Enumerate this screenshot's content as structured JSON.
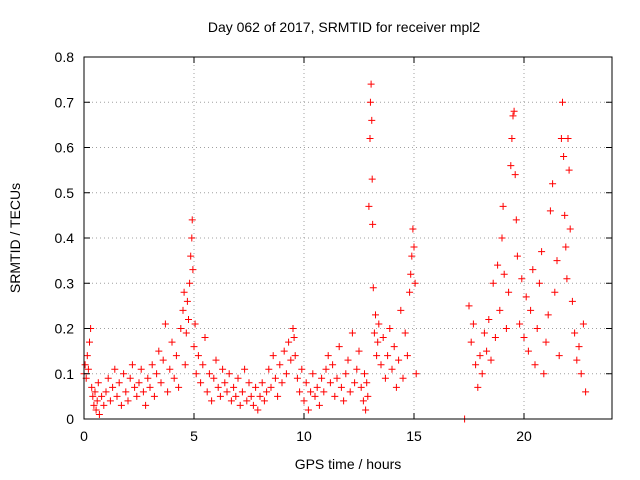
{
  "chart_data": {
    "type": "scatter",
    "title": "Day 062 of 2017, SRMTID for receiver mpl2",
    "xlabel": "GPS time / hours",
    "ylabel": "SRMTID / TECUs",
    "xlim": [
      0,
      24
    ],
    "ylim": [
      0,
      0.8
    ],
    "xticks": [
      0,
      5,
      10,
      15,
      20
    ],
    "xtick_labels": [
      "0",
      "5",
      "10",
      "15",
      "20"
    ],
    "yticks": [
      0,
      0.1,
      0.2,
      0.3,
      0.4,
      0.5,
      0.6,
      0.7,
      0.8
    ],
    "ytick_labels": [
      "0",
      "0.1",
      "0.2",
      "0.3",
      "0.4",
      "0.5",
      "0.6",
      "0.7",
      "0.8"
    ],
    "grid": true,
    "marker": "+",
    "color": "#ff0000",
    "series": [
      {
        "name": "SRMTID",
        "points": [
          [
            0.0,
            0.1
          ],
          [
            0.05,
            0.12
          ],
          [
            0.1,
            0.09
          ],
          [
            0.15,
            0.14
          ],
          [
            0.2,
            0.11
          ],
          [
            0.25,
            0.17
          ],
          [
            0.3,
            0.2
          ],
          [
            0.35,
            0.07
          ],
          [
            0.4,
            0.05
          ],
          [
            0.45,
            0.03
          ],
          [
            0.5,
            0.06
          ],
          [
            0.55,
            0.02
          ],
          [
            0.6,
            0.04
          ],
          [
            0.65,
            0.08
          ],
          [
            0.7,
            0.01
          ],
          [
            0.8,
            0.05
          ],
          [
            0.9,
            0.03
          ],
          [
            1.0,
            0.06
          ],
          [
            1.1,
            0.09
          ],
          [
            1.2,
            0.04
          ],
          [
            1.3,
            0.07
          ],
          [
            1.4,
            0.11
          ],
          [
            1.5,
            0.05
          ],
          [
            1.6,
            0.08
          ],
          [
            1.7,
            0.03
          ],
          [
            1.8,
            0.1
          ],
          [
            1.9,
            0.06
          ],
          [
            2.0,
            0.04
          ],
          [
            2.1,
            0.09
          ],
          [
            2.2,
            0.12
          ],
          [
            2.3,
            0.07
          ],
          [
            2.4,
            0.05
          ],
          [
            2.5,
            0.08
          ],
          [
            2.6,
            0.11
          ],
          [
            2.7,
            0.06
          ],
          [
            2.8,
            0.03
          ],
          [
            2.9,
            0.09
          ],
          [
            3.0,
            0.07
          ],
          [
            3.1,
            0.12
          ],
          [
            3.2,
            0.05
          ],
          [
            3.3,
            0.1
          ],
          [
            3.4,
            0.15
          ],
          [
            3.5,
            0.08
          ],
          [
            3.6,
            0.13
          ],
          [
            3.7,
            0.21
          ],
          [
            3.8,
            0.06
          ],
          [
            3.9,
            0.11
          ],
          [
            4.0,
            0.17
          ],
          [
            4.1,
            0.09
          ],
          [
            4.2,
            0.14
          ],
          [
            4.3,
            0.07
          ],
          [
            4.4,
            0.2
          ],
          [
            4.5,
            0.24
          ],
          [
            4.55,
            0.28
          ],
          [
            4.6,
            0.12
          ],
          [
            4.65,
            0.19
          ],
          [
            4.7,
            0.26
          ],
          [
            4.75,
            0.22
          ],
          [
            4.8,
            0.3
          ],
          [
            4.85,
            0.36
          ],
          [
            4.9,
            0.4
          ],
          [
            4.92,
            0.44
          ],
          [
            4.95,
            0.33
          ],
          [
            5.0,
            0.16
          ],
          [
            5.05,
            0.21
          ],
          [
            5.1,
            0.1
          ],
          [
            5.2,
            0.14
          ],
          [
            5.3,
            0.08
          ],
          [
            5.4,
            0.12
          ],
          [
            5.5,
            0.18
          ],
          [
            5.6,
            0.06
          ],
          [
            5.7,
            0.1
          ],
          [
            5.8,
            0.04
          ],
          [
            5.9,
            0.09
          ],
          [
            6.0,
            0.13
          ],
          [
            6.1,
            0.07
          ],
          [
            6.2,
            0.05
          ],
          [
            6.3,
            0.11
          ],
          [
            6.4,
            0.08
          ],
          [
            6.5,
            0.06
          ],
          [
            6.6,
            0.1
          ],
          [
            6.7,
            0.04
          ],
          [
            6.8,
            0.07
          ],
          [
            6.9,
            0.05
          ],
          [
            7.0,
            0.09
          ],
          [
            7.1,
            0.03
          ],
          [
            7.2,
            0.06
          ],
          [
            7.3,
            0.11
          ],
          [
            7.4,
            0.04
          ],
          [
            7.5,
            0.08
          ],
          [
            7.6,
            0.05
          ],
          [
            7.7,
            0.03
          ],
          [
            7.8,
            0.07
          ],
          [
            7.9,
            0.02
          ],
          [
            8.0,
            0.05
          ],
          [
            8.1,
            0.08
          ],
          [
            8.2,
            0.04
          ],
          [
            8.3,
            0.06
          ],
          [
            8.4,
            0.11
          ],
          [
            8.5,
            0.07
          ],
          [
            8.6,
            0.14
          ],
          [
            8.7,
            0.09
          ],
          [
            8.8,
            0.05
          ],
          [
            8.9,
            0.12
          ],
          [
            9.0,
            0.08
          ],
          [
            9.1,
            0.15
          ],
          [
            9.2,
            0.1
          ],
          [
            9.3,
            0.17
          ],
          [
            9.4,
            0.13
          ],
          [
            9.5,
            0.2
          ],
          [
            9.55,
            0.18
          ],
          [
            9.6,
            0.14
          ],
          [
            9.7,
            0.09
          ],
          [
            9.8,
            0.06
          ],
          [
            9.9,
            0.11
          ],
          [
            10.0,
            0.04
          ],
          [
            10.1,
            0.08
          ],
          [
            10.2,
            0.02
          ],
          [
            10.3,
            0.06
          ],
          [
            10.4,
            0.1
          ],
          [
            10.5,
            0.05
          ],
          [
            10.6,
            0.07
          ],
          [
            10.7,
            0.03
          ],
          [
            10.8,
            0.09
          ],
          [
            10.9,
            0.06
          ],
          [
            11.0,
            0.11
          ],
          [
            11.1,
            0.14
          ],
          [
            11.2,
            0.08
          ],
          [
            11.3,
            0.12
          ],
          [
            11.4,
            0.05
          ],
          [
            11.5,
            0.09
          ],
          [
            11.6,
            0.16
          ],
          [
            11.7,
            0.07
          ],
          [
            11.8,
            0.04
          ],
          [
            11.9,
            0.1
          ],
          [
            12.0,
            0.13
          ],
          [
            12.1,
            0.06
          ],
          [
            12.2,
            0.19
          ],
          [
            12.3,
            0.08
          ],
          [
            12.4,
            0.11
          ],
          [
            12.5,
            0.15
          ],
          [
            12.6,
            0.07
          ],
          [
            12.7,
            0.04
          ],
          [
            12.75,
            0.1
          ],
          [
            12.8,
            0.02
          ],
          [
            12.85,
            0.08
          ],
          [
            12.9,
            0.05
          ],
          [
            12.95,
            0.47
          ],
          [
            13.0,
            0.62
          ],
          [
            13.02,
            0.7
          ],
          [
            13.05,
            0.74
          ],
          [
            13.08,
            0.66
          ],
          [
            13.1,
            0.53
          ],
          [
            13.12,
            0.43
          ],
          [
            13.15,
            0.29
          ],
          [
            13.2,
            0.19
          ],
          [
            13.25,
            0.23
          ],
          [
            13.3,
            0.14
          ],
          [
            13.35,
            0.17
          ],
          [
            13.4,
            0.21
          ],
          [
            13.5,
            0.12
          ],
          [
            13.6,
            0.18
          ],
          [
            13.7,
            0.09
          ],
          [
            13.8,
            0.14
          ],
          [
            13.9,
            0.2
          ],
          [
            14.0,
            0.11
          ],
          [
            14.1,
            0.16
          ],
          [
            14.2,
            0.07
          ],
          [
            14.3,
            0.13
          ],
          [
            14.4,
            0.24
          ],
          [
            14.5,
            0.09
          ],
          [
            14.6,
            0.19
          ],
          [
            14.7,
            0.14
          ],
          [
            14.8,
            0.28
          ],
          [
            14.85,
            0.32
          ],
          [
            14.9,
            0.36
          ],
          [
            14.95,
            0.42
          ],
          [
            15.0,
            0.38
          ],
          [
            15.05,
            0.3
          ],
          [
            15.1,
            0.1
          ],
          [
            17.3,
            0.0
          ],
          [
            17.5,
            0.25
          ],
          [
            17.6,
            0.17
          ],
          [
            17.7,
            0.21
          ],
          [
            17.8,
            0.12
          ],
          [
            17.9,
            0.07
          ],
          [
            18.0,
            0.14
          ],
          [
            18.1,
            0.1
          ],
          [
            18.2,
            0.19
          ],
          [
            18.3,
            0.15
          ],
          [
            18.4,
            0.22
          ],
          [
            18.5,
            0.13
          ],
          [
            18.6,
            0.3
          ],
          [
            18.7,
            0.18
          ],
          [
            18.8,
            0.34
          ],
          [
            18.9,
            0.24
          ],
          [
            19.0,
            0.4
          ],
          [
            19.05,
            0.47
          ],
          [
            19.1,
            0.32
          ],
          [
            19.2,
            0.2
          ],
          [
            19.3,
            0.28
          ],
          [
            19.4,
            0.56
          ],
          [
            19.45,
            0.62
          ],
          [
            19.5,
            0.67
          ],
          [
            19.55,
            0.68
          ],
          [
            19.6,
            0.54
          ],
          [
            19.65,
            0.44
          ],
          [
            19.7,
            0.36
          ],
          [
            19.8,
            0.21
          ],
          [
            19.9,
            0.31
          ],
          [
            20.0,
            0.18
          ],
          [
            20.1,
            0.27
          ],
          [
            20.2,
            0.15
          ],
          [
            20.3,
            0.24
          ],
          [
            20.4,
            0.33
          ],
          [
            20.5,
            0.12
          ],
          [
            20.6,
            0.2
          ],
          [
            20.7,
            0.3
          ],
          [
            20.8,
            0.37
          ],
          [
            20.9,
            0.1
          ],
          [
            21.0,
            0.17
          ],
          [
            21.1,
            0.23
          ],
          [
            21.2,
            0.46
          ],
          [
            21.3,
            0.52
          ],
          [
            21.4,
            0.28
          ],
          [
            21.5,
            0.35
          ],
          [
            21.6,
            0.14
          ],
          [
            21.7,
            0.62
          ],
          [
            21.75,
            0.7
          ],
          [
            21.8,
            0.58
          ],
          [
            21.85,
            0.45
          ],
          [
            21.9,
            0.38
          ],
          [
            21.95,
            0.31
          ],
          [
            22.0,
            0.62
          ],
          [
            22.05,
            0.55
          ],
          [
            22.1,
            0.42
          ],
          [
            22.2,
            0.26
          ],
          [
            22.3,
            0.19
          ],
          [
            22.4,
            0.13
          ],
          [
            22.5,
            0.16
          ],
          [
            22.6,
            0.1
          ],
          [
            22.7,
            0.21
          ],
          [
            22.8,
            0.06
          ]
        ]
      }
    ]
  }
}
